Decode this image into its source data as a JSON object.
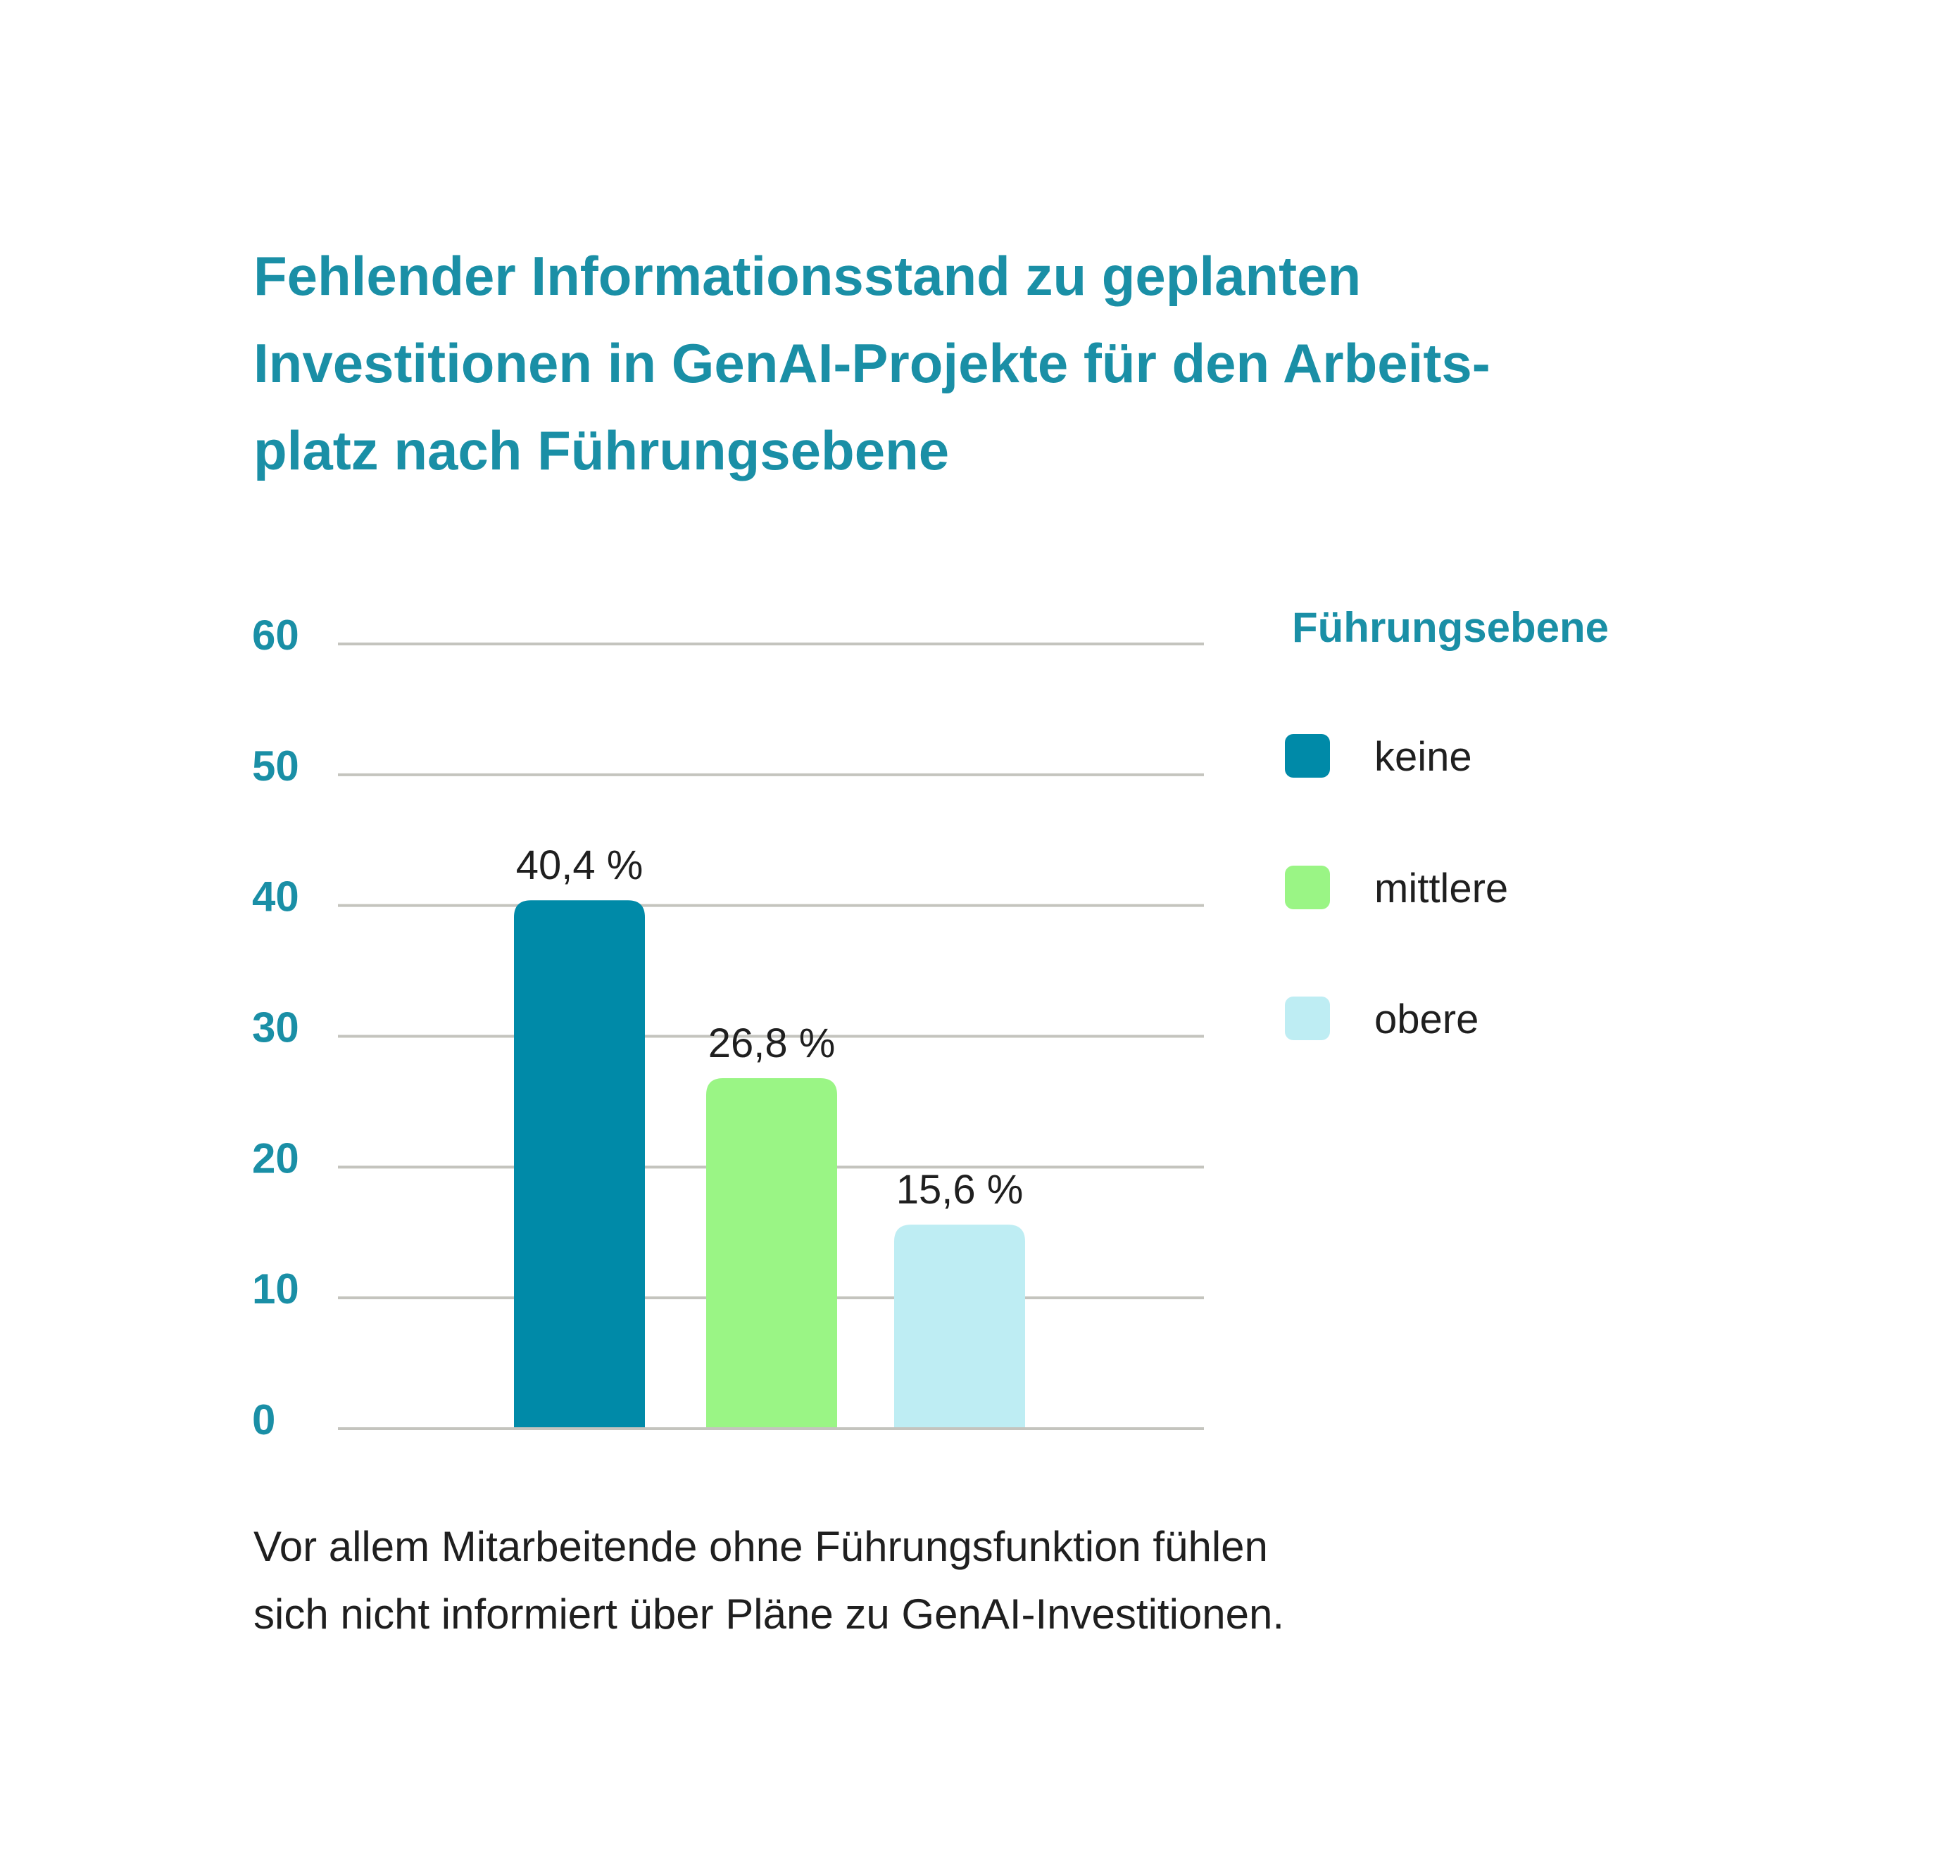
{
  "title_lines": [
    "Fehlender Informationsstand zu geplanten",
    "Investitionen in GenAI-Projekte für den Arbeits-",
    "platz nach Führungsebene"
  ],
  "caption_lines": [
    "Vor allem Mitarbeitende ohne Führungsfunktion fühlen",
    "sich nicht informiert über Pläne zu GenAI-Investitionen."
  ],
  "colors": {
    "accent": "#1a8fa6",
    "keine": "#008aa8",
    "mittlere": "#9af585",
    "obere": "#beedf3",
    "grid": "#c4c4be",
    "text": "#1f1f1f"
  },
  "chart_data": {
    "type": "bar",
    "title": "Fehlender Informationsstand zu geplanten Investitionen in GenAI-Projekte für den Arbeitsplatz nach Führungsebene",
    "categories": [
      "keine",
      "mittlere",
      "obere"
    ],
    "values": [
      40.4,
      26.8,
      15.6
    ],
    "value_labels": [
      "40,4 %",
      "26,8 %",
      "15,6 %"
    ],
    "ylim": [
      0,
      60
    ],
    "yticks": [
      0,
      10,
      20,
      30,
      40,
      50,
      60
    ],
    "grid": true,
    "legend": {
      "title": "Führungsebene",
      "placement": "right",
      "items": [
        "keine",
        "mittlere",
        "obere"
      ]
    },
    "xlabel": "",
    "ylabel": ""
  }
}
